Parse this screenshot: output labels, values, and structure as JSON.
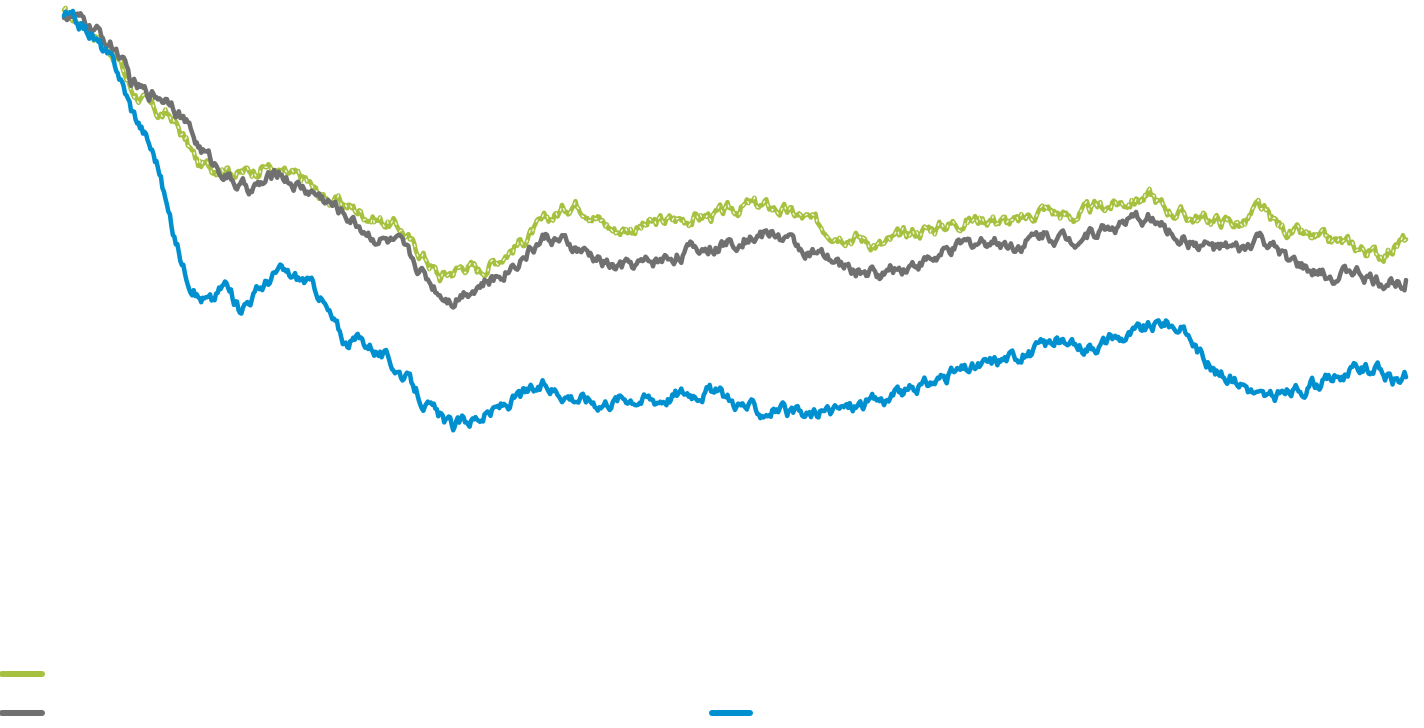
{
  "chart_data": {
    "type": "line",
    "title": "",
    "xlabel": "",
    "ylabel": "",
    "grid": false,
    "legend_placement": "bottom-left",
    "x_range": [
      0,
      100
    ],
    "ylim": [
      0,
      100
    ],
    "series": [
      {
        "color": "#a6c040",
        "line_style": "solid-with-white-dashes",
        "legend_swatch": true,
        "points": [
          [
            0,
            100
          ],
          [
            2,
            97.5
          ],
          [
            4,
            93
          ],
          [
            5,
            88
          ],
          [
            6,
            86
          ],
          [
            7,
            84
          ],
          [
            8,
            83.5
          ],
          [
            9,
            80
          ],
          [
            10,
            76
          ],
          [
            11,
            75.5
          ],
          [
            12,
            75.8
          ],
          [
            13,
            74.5
          ],
          [
            14,
            75
          ],
          [
            15,
            76
          ],
          [
            16,
            74.5
          ],
          [
            17,
            74
          ],
          [
            18,
            73.5
          ],
          [
            19,
            71
          ],
          [
            21,
            69.5
          ],
          [
            23,
            67.5
          ],
          [
            25,
            66
          ],
          [
            26,
            63
          ],
          [
            27,
            61
          ],
          [
            28,
            58
          ],
          [
            29,
            59
          ],
          [
            30,
            60
          ],
          [
            31,
            59
          ],
          [
            32,
            60.5
          ],
          [
            34,
            63.5
          ],
          [
            36,
            67
          ],
          [
            38,
            70
          ],
          [
            39,
            69
          ],
          [
            40,
            67
          ],
          [
            41,
            65.5
          ],
          [
            43,
            66
          ],
          [
            45,
            67
          ],
          [
            47,
            67.5
          ],
          [
            49,
            68
          ],
          [
            51,
            69.5
          ],
          [
            53,
            69
          ],
          [
            55,
            67.5
          ],
          [
            57,
            65.5
          ],
          [
            59,
            64.5
          ],
          [
            61,
            63
          ],
          [
            63,
            65
          ],
          [
            65,
            66
          ],
          [
            67,
            67
          ],
          [
            69,
            67.5
          ],
          [
            71,
            66.5
          ],
          [
            73,
            69
          ],
          [
            75,
            67.5
          ],
          [
            77,
            69
          ],
          [
            79,
            70
          ],
          [
            81,
            71
          ],
          [
            82,
            69
          ],
          [
            84,
            67.5
          ],
          [
            86,
            67
          ],
          [
            88,
            66.5
          ],
          [
            89,
            69
          ],
          [
            90,
            67
          ],
          [
            91,
            65.5
          ],
          [
            93,
            64
          ],
          [
            95,
            63.5
          ],
          [
            96,
            63
          ],
          [
            98,
            61.5
          ],
          [
            100,
            64
          ]
        ]
      },
      {
        "color": "#707070",
        "line_style": "solid",
        "legend_swatch": true,
        "points": [
          [
            0,
            100
          ],
          [
            2,
            98
          ],
          [
            4,
            94
          ],
          [
            5,
            89
          ],
          [
            6,
            87.5
          ],
          [
            7,
            87
          ],
          [
            8,
            86.5
          ],
          [
            9,
            83
          ],
          [
            10,
            79
          ],
          [
            11,
            76.5
          ],
          [
            12,
            74.5
          ],
          [
            13,
            72.5
          ],
          [
            14,
            72
          ],
          [
            15,
            73
          ],
          [
            16,
            75
          ],
          [
            17,
            73
          ],
          [
            18,
            72
          ],
          [
            19,
            71
          ],
          [
            21,
            68
          ],
          [
            23,
            64.5
          ],
          [
            25,
            63
          ],
          [
            26,
            60.5
          ],
          [
            27,
            58
          ],
          [
            28,
            55.5
          ],
          [
            29,
            54.5
          ],
          [
            30,
            56
          ],
          [
            32,
            57.5
          ],
          [
            34,
            61
          ],
          [
            36,
            64.5
          ],
          [
            38,
            62.5
          ],
          [
            40,
            60.5
          ],
          [
            41,
            59.5
          ],
          [
            43,
            60
          ],
          [
            45,
            61
          ],
          [
            47,
            62.5
          ],
          [
            49,
            63
          ],
          [
            51,
            64.5
          ],
          [
            53,
            65
          ],
          [
            55,
            62.5
          ],
          [
            57,
            60.5
          ],
          [
            59,
            59
          ],
          [
            61,
            58.5
          ],
          [
            63,
            60
          ],
          [
            65,
            61
          ],
          [
            67,
            63
          ],
          [
            69,
            64
          ],
          [
            71,
            63
          ],
          [
            73,
            65
          ],
          [
            75,
            64
          ],
          [
            77,
            65.5
          ],
          [
            79,
            66.5
          ],
          [
            81,
            67.5
          ],
          [
            82,
            65.5
          ],
          [
            84,
            63.5
          ],
          [
            86,
            62.5
          ],
          [
            88,
            62
          ],
          [
            89,
            64.5
          ],
          [
            90,
            62.5
          ],
          [
            91,
            61
          ],
          [
            93,
            58.5
          ],
          [
            95,
            58
          ],
          [
            96,
            59
          ],
          [
            98,
            57
          ],
          [
            100,
            57.5
          ]
        ]
      },
      {
        "color": "#0090d0",
        "line_style": "solid",
        "legend_swatch": true,
        "points": [
          [
            0,
            100
          ],
          [
            2,
            97
          ],
          [
            4,
            91
          ],
          [
            5,
            85
          ],
          [
            6,
            81
          ],
          [
            7,
            76
          ],
          [
            8,
            66
          ],
          [
            9,
            59
          ],
          [
            10,
            55
          ],
          [
            11,
            54
          ],
          [
            12,
            57
          ],
          [
            13,
            53
          ],
          [
            14,
            55
          ],
          [
            15,
            57
          ],
          [
            16,
            59
          ],
          [
            17,
            58
          ],
          [
            18,
            57.5
          ],
          [
            19,
            55.5
          ],
          [
            20,
            51
          ],
          [
            21,
            47.5
          ],
          [
            22,
            48
          ],
          [
            23,
            47
          ],
          [
            24,
            45
          ],
          [
            25,
            43
          ],
          [
            26,
            40.5
          ],
          [
            27,
            37.5
          ],
          [
            28,
            35.5
          ],
          [
            29,
            34
          ],
          [
            30,
            35
          ],
          [
            32,
            36.5
          ],
          [
            34,
            39
          ],
          [
            36,
            40.5
          ],
          [
            38,
            39
          ],
          [
            40,
            38
          ],
          [
            42,
            39
          ],
          [
            44,
            38.5
          ],
          [
            46,
            39.5
          ],
          [
            48,
            40
          ],
          [
            50,
            38
          ],
          [
            52,
            36.5
          ],
          [
            53,
            37
          ],
          [
            55,
            35.5
          ],
          [
            56,
            36
          ],
          [
            58,
            37
          ],
          [
            60,
            38
          ],
          [
            62,
            39
          ],
          [
            64,
            40.5
          ],
          [
            66,
            42.5
          ],
          [
            68,
            43.5
          ],
          [
            70,
            45
          ],
          [
            72,
            46
          ],
          [
            74,
            48
          ],
          [
            75,
            46.5
          ],
          [
            77,
            47.5
          ],
          [
            79,
            48.5
          ],
          [
            81,
            50
          ],
          [
            82,
            51
          ],
          [
            83,
            50
          ],
          [
            84,
            48
          ],
          [
            85,
            45
          ],
          [
            86,
            42.5
          ],
          [
            88,
            41
          ],
          [
            89,
            39
          ],
          [
            90,
            38.5
          ],
          [
            92,
            40
          ],
          [
            94,
            41.5
          ],
          [
            96,
            43
          ],
          [
            97,
            43.5
          ],
          [
            98,
            43
          ],
          [
            99,
            41.5
          ],
          [
            100,
            42
          ]
        ]
      }
    ]
  }
}
